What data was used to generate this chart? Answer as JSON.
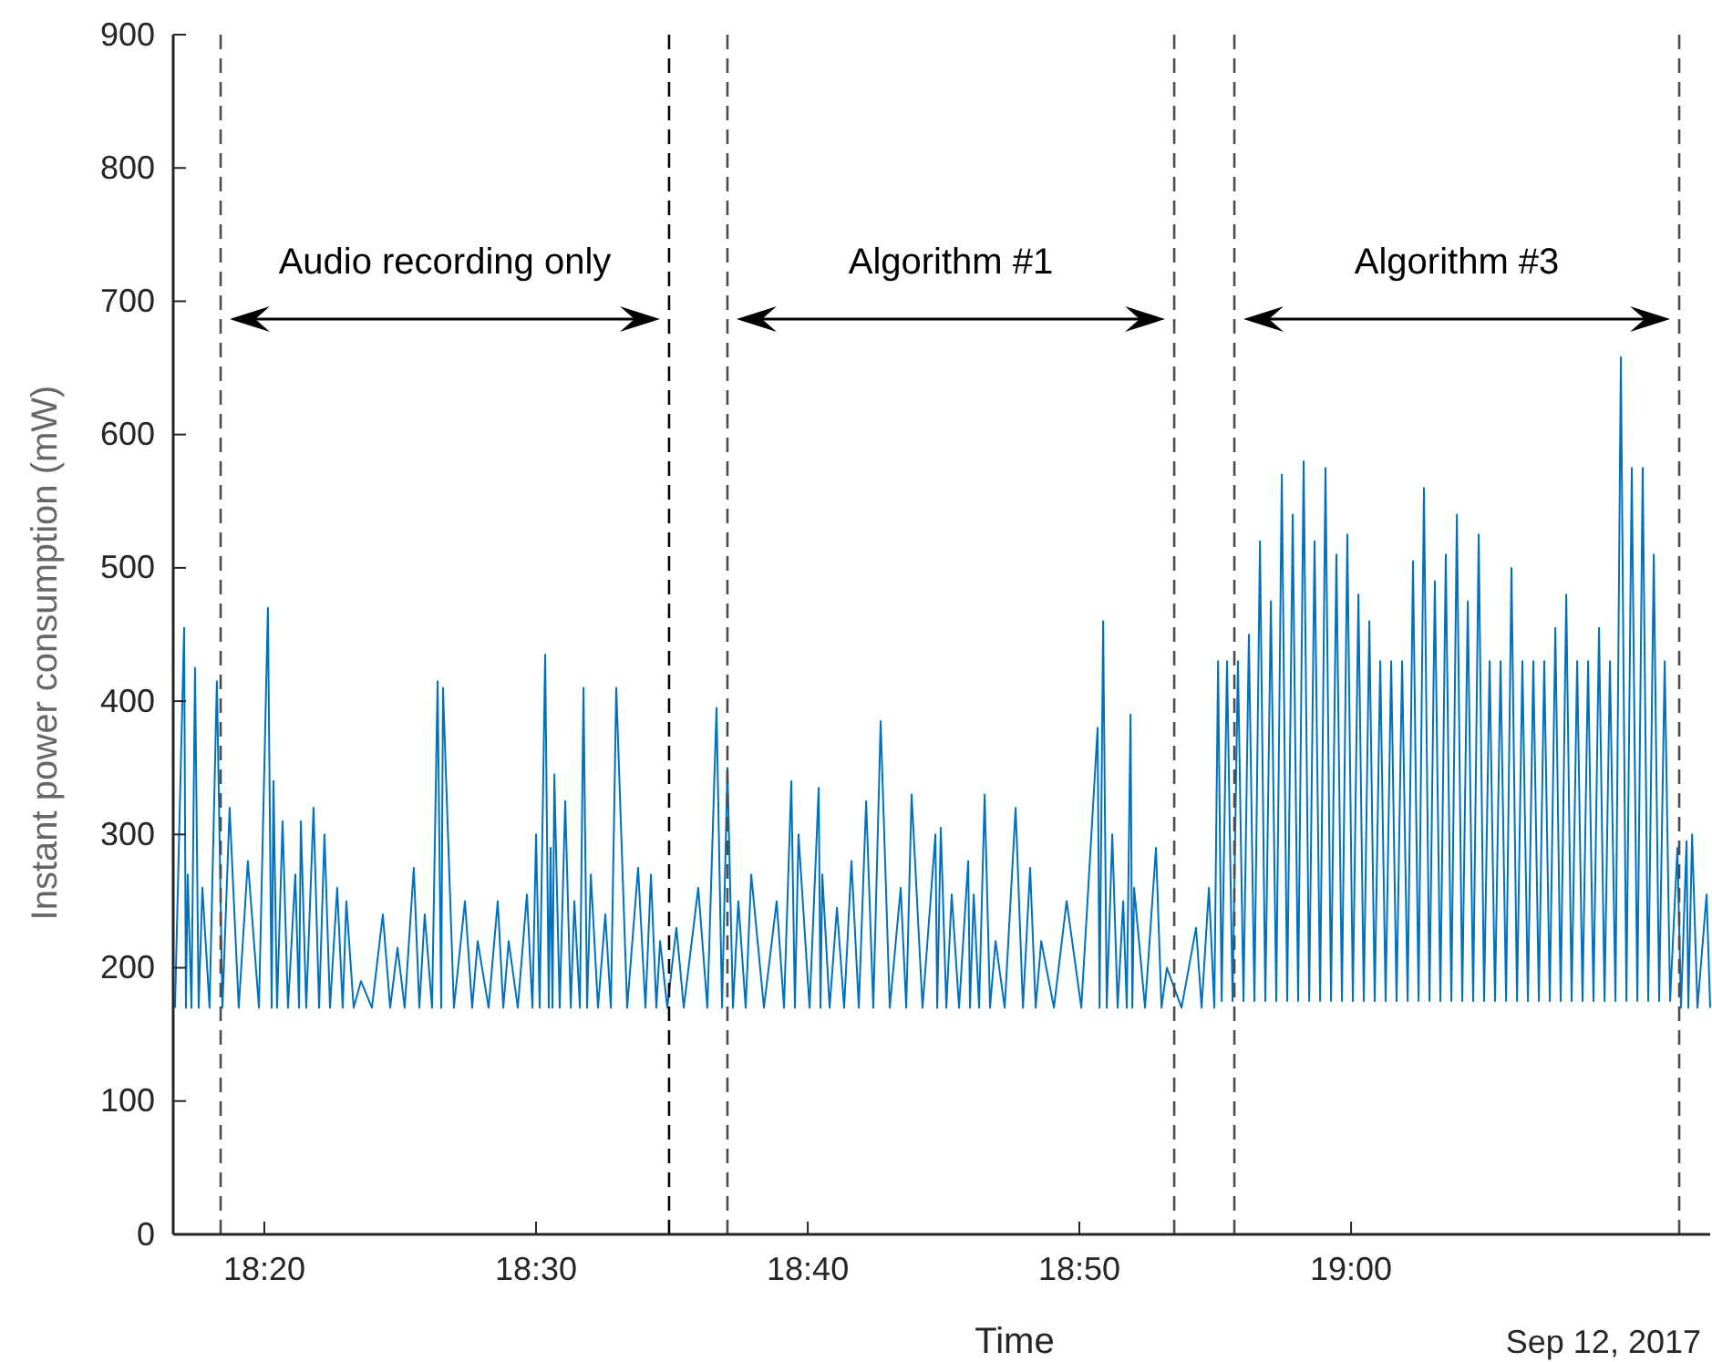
{
  "chart_data": {
    "type": "line",
    "xlabel": "Time",
    "ylabel": "Instant power consumption (mW)",
    "xlim": [
      18.2774,
      19.2203
    ],
    "ylim": [
      0,
      900
    ],
    "xticks": [
      {
        "value": 18.3333,
        "label": "18:20"
      },
      {
        "value": 18.5,
        "label": "18:30"
      },
      {
        "value": 18.6667,
        "label": "18:40"
      },
      {
        "value": 18.8333,
        "label": "18:50"
      },
      {
        "value": 19,
        "label": "19:00"
      }
    ],
    "yticks": [
      0,
      100,
      200,
      300,
      400,
      500,
      600,
      700,
      800,
      900
    ],
    "grid": false,
    "line_style": "solid",
    "marker": "none",
    "ref_lines": [
      {
        "axis": "x",
        "value": 18.3065,
        "color": "#4d4d4d",
        "line_style": "dashed"
      },
      {
        "axis": "x",
        "value": 18.5816,
        "color": "#000000",
        "line_style": "dashed"
      },
      {
        "axis": "x",
        "value": 18.6174,
        "color": "#4d4d4d",
        "line_style": "dashed"
      },
      {
        "axis": "x",
        "value": 18.8915,
        "color": "#4d4d4d",
        "line_style": "dashed"
      },
      {
        "axis": "x",
        "value": 18.9284,
        "color": "#4d4d4d",
        "line_style": "dashed"
      },
      {
        "axis": "x",
        "value": 19.2013,
        "color": "#4d4d4d",
        "line_style": "dashed"
      }
    ],
    "annotations": [
      "Audio recording only",
      "Algorithm #1",
      "Algorithm #3",
      "Sep 12, 2017"
    ],
    "series": [
      {
        "color": "#0072bd",
        "x": [
          18.2785,
          18.2841,
          18.2852,
          18.2863,
          18.2886,
          18.2908,
          18.293,
          18.2953,
          18.2997,
          18.3042,
          18.3076,
          18.312,
          18.3176,
          18.3232,
          18.33,
          18.3355,
          18.3378,
          18.3389,
          18.3411,
          18.3445,
          18.3478,
          18.3523,
          18.3546,
          18.3557,
          18.359,
          18.3635,
          18.3669,
          18.3702,
          18.3736,
          18.378,
          18.3814,
          18.3836,
          18.3881,
          18.3926,
          18.3993,
          18.406,
          18.4105,
          18.415,
          18.4194,
          18.425,
          18.4284,
          18.4317,
          18.4362,
          18.4396,
          18.4418,
          18.4429,
          18.4496,
          18.4564,
          18.4608,
          18.4642,
          18.4709,
          18.4765,
          18.4799,
          18.4832,
          18.4888,
          18.4944,
          18.4978,
          18.5,
          18.5022,
          18.5056,
          18.5078,
          18.5089,
          18.5101,
          18.5112,
          18.5145,
          18.5179,
          18.5213,
          18.5235,
          18.5269,
          18.5291,
          18.5313,
          18.5336,
          18.538,
          18.5425,
          18.5459,
          18.5492,
          18.5559,
          18.5626,
          18.5671,
          18.5705,
          18.5738,
          18.5761,
          18.5805,
          18.5861,
          18.5906,
          18.5995,
          18.6051,
          18.6107,
          18.6141,
          18.6174,
          18.6208,
          18.6241,
          18.6286,
          18.632,
          18.6398,
          18.6476,
          18.6521,
          18.6566,
          18.6588,
          18.661,
          18.6678,
          18.6734,
          18.6745,
          18.6756,
          18.6801,
          18.6846,
          18.689,
          18.6935,
          18.698,
          18.7025,
          18.7069,
          18.7114,
          18.717,
          18.7237,
          18.7271,
          18.7304,
          18.7371,
          18.745,
          18.7461,
          18.7483,
          18.7517,
          18.755,
          18.7595,
          18.7651,
          18.7662,
          18.7685,
          18.7718,
          18.7752,
          18.7785,
          18.7819,
          18.7875,
          18.7942,
          18.7987,
          18.8031,
          18.8065,
          18.8099,
          18.8177,
          18.8255,
          18.8345,
          18.8445,
          18.8457,
          18.8479,
          18.8501,
          18.8535,
          18.8568,
          18.8602,
          18.8624,
          18.8647,
          18.8658,
          18.8669,
          18.8736,
          18.8803,
          18.8837,
          18.887,
          18.896,
          18.9049,
          18.9083,
          18.9128,
          18.9161,
          18.9184,
          18.9206,
          18.9239,
          18.9273,
          18.9306,
          18.934,
          18.9373,
          18.9407,
          18.9441,
          18.9474,
          18.9508,
          18.9541,
          18.9575,
          18.9608,
          18.9642,
          18.9675,
          18.9709,
          18.9743,
          18.9776,
          18.981,
          18.9843,
          18.9877,
          18.991,
          18.9944,
          18.9977,
          19.0011,
          19.0045,
          19.0078,
          19.0112,
          19.0145,
          19.0179,
          19.0212,
          19.0246,
          19.0279,
          19.0313,
          19.0347,
          19.038,
          19.0414,
          19.0447,
          19.0481,
          19.0514,
          19.0548,
          19.0581,
          19.0615,
          19.0649,
          19.0682,
          19.0716,
          19.0749,
          19.0783,
          19.0816,
          19.085,
          19.0883,
          19.0917,
          19.0951,
          19.0984,
          19.1018,
          19.1051,
          19.1085,
          19.1118,
          19.1152,
          19.1185,
          19.1219,
          19.1253,
          19.1286,
          19.132,
          19.1353,
          19.1387,
          19.142,
          19.1454,
          19.1487,
          19.1521,
          19.1555,
          19.1588,
          19.1622,
          19.1655,
          19.1689,
          19.1722,
          19.1756,
          19.1789,
          19.1823,
          19.1857,
          19.189,
          19.1924,
          19.1957,
          19.2002,
          19.2024,
          19.2058,
          19.2069,
          19.2092,
          19.2125,
          19.2181,
          19.2203
        ],
        "values": [
          170,
          455,
          170,
          270,
          170,
          425,
          170,
          260,
          170,
          415,
          170,
          320,
          170,
          280,
          170,
          470,
          170,
          340,
          170,
          310,
          170,
          270,
          170,
          310,
          170,
          320,
          170,
          300,
          170,
          260,
          170,
          250,
          170,
          190,
          170,
          240,
          170,
          215,
          170,
          275,
          170,
          240,
          170,
          415,
          170,
          410,
          170,
          250,
          170,
          220,
          170,
          250,
          170,
          220,
          170,
          255,
          170,
          300,
          170,
          435,
          170,
          290,
          170,
          345,
          170,
          325,
          170,
          250,
          170,
          410,
          170,
          270,
          170,
          240,
          170,
          410,
          170,
          275,
          170,
          270,
          170,
          220,
          170,
          230,
          170,
          260,
          170,
          395,
          170,
          350,
          170,
          250,
          170,
          270,
          170,
          250,
          170,
          340,
          170,
          300,
          170,
          335,
          170,
          270,
          170,
          245,
          170,
          280,
          170,
          325,
          170,
          385,
          170,
          260,
          170,
          330,
          170,
          300,
          170,
          305,
          170,
          255,
          170,
          280,
          170,
          255,
          170,
          330,
          170,
          220,
          170,
          320,
          170,
          275,
          170,
          220,
          170,
          250,
          170,
          380,
          170,
          460,
          170,
          300,
          170,
          250,
          170,
          390,
          170,
          260,
          170,
          290,
          170,
          200,
          170,
          230,
          170,
          260,
          170,
          430,
          175,
          430,
          175,
          430,
          175,
          450,
          175,
          520,
          175,
          475,
          175,
          570,
          175,
          540,
          175,
          580,
          175,
          520,
          175,
          575,
          175,
          510,
          175,
          525,
          175,
          480,
          175,
          460,
          175,
          430,
          175,
          430,
          175,
          430,
          175,
          505,
          175,
          560,
          175,
          490,
          175,
          510,
          175,
          540,
          175,
          475,
          175,
          525,
          175,
          430,
          175,
          430,
          175,
          500,
          175,
          430,
          175,
          430,
          175,
          430,
          175,
          455,
          175,
          480,
          175,
          430,
          175,
          430,
          175,
          455,
          175,
          430,
          175,
          658,
          175,
          575,
          175,
          575,
          175,
          510,
          175,
          430,
          175,
          290,
          170,
          295,
          170,
          300,
          170,
          255,
          170
        ]
      }
    ]
  }
}
